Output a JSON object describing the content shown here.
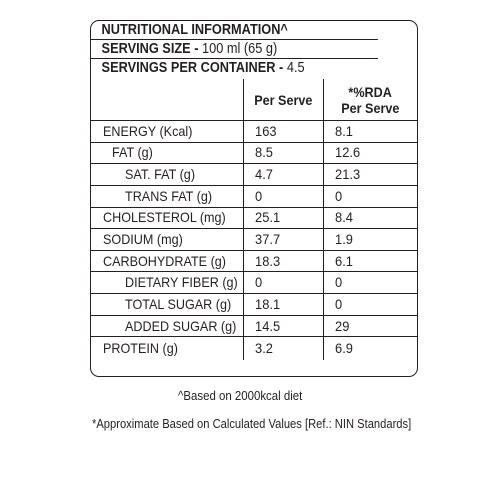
{
  "header": {
    "title": "NUTRITIONAL INFORMATION^",
    "serving_size_label": "SERVING SIZE -",
    "serving_size_value": "100 ml (65 g)",
    "servings_label": "SERVINGS PER CONTAINER -",
    "servings_value": "4.5"
  },
  "columns": {
    "per_serve": "Per Serve",
    "rda_line1": "*%RDA",
    "rda_line2": "Per Serve"
  },
  "rows": [
    {
      "label": "ENERGY (Kcal)",
      "per_serve": "163",
      "rda": "8.1"
    },
    {
      "label": "FAT (g)",
      "per_serve": "8.5",
      "rda": "12.6"
    },
    {
      "label": "SAT. FAT (g)",
      "per_serve": "4.7",
      "rda": "21.3"
    },
    {
      "label": "TRANS FAT (g)",
      "per_serve": "0",
      "rda": "0"
    },
    {
      "label": "CHOLESTEROL (mg)",
      "per_serve": "25.1",
      "rda": "8.4"
    },
    {
      "label": "SODIUM (mg)",
      "per_serve": "37.7",
      "rda": "1.9"
    },
    {
      "label": "CARBOHYDRATE (g)",
      "per_serve": "18.3",
      "rda": "6.1"
    },
    {
      "label": "DIETARY FIBER (g)",
      "per_serve": "0",
      "rda": "0"
    },
    {
      "label": "TOTAL SUGAR (g)",
      "per_serve": "18.1",
      "rda": "0"
    },
    {
      "label": "ADDED SUGAR (g)",
      "per_serve": "14.5",
      "rda": "29"
    },
    {
      "label": "PROTEIN (g)",
      "per_serve": "3.2",
      "rda": "6.9"
    }
  ],
  "footnotes": {
    "diet_note": "^Based on 2000kcal diet",
    "rda_note": "*Approximate Based on Calculated Values  [Ref.: NIN Standards]"
  }
}
